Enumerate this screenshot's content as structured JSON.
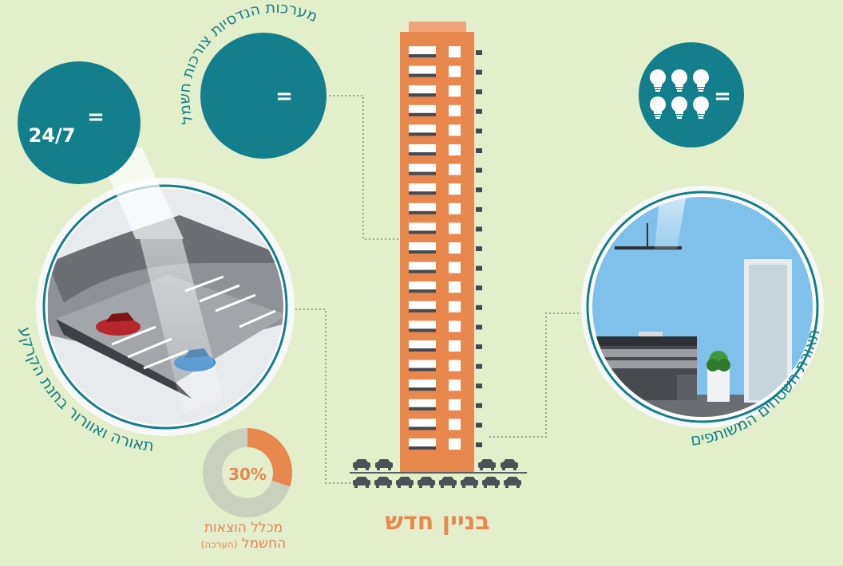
{
  "title": "בניין חדש",
  "callouts": {
    "parking": {
      "curved_label": "תאורה ואוורור בחנת הקרקע",
      "badge_value": "24/7",
      "equals": "="
    },
    "engineering": {
      "curved_label": "מערכות הנדסיות צורכות חשמל",
      "equals": "="
    },
    "common_areas": {
      "curved_label": "תאורת השטחים המשותפים",
      "equals": "=",
      "bulb_count": 6,
      "icon": "lightbulb-icon"
    }
  },
  "donut": {
    "value_label": "30%",
    "fraction": 0.3,
    "caption_line1": "מכלל הוצאות",
    "caption_line2": "החשמל",
    "caption_note": "(הערכה)"
  },
  "colors": {
    "background": "#e3eecb",
    "teal": "#137f8c",
    "orange": "#e8874e",
    "donut_gray": "#c9d1be",
    "donut_orange": "#e8874e"
  }
}
